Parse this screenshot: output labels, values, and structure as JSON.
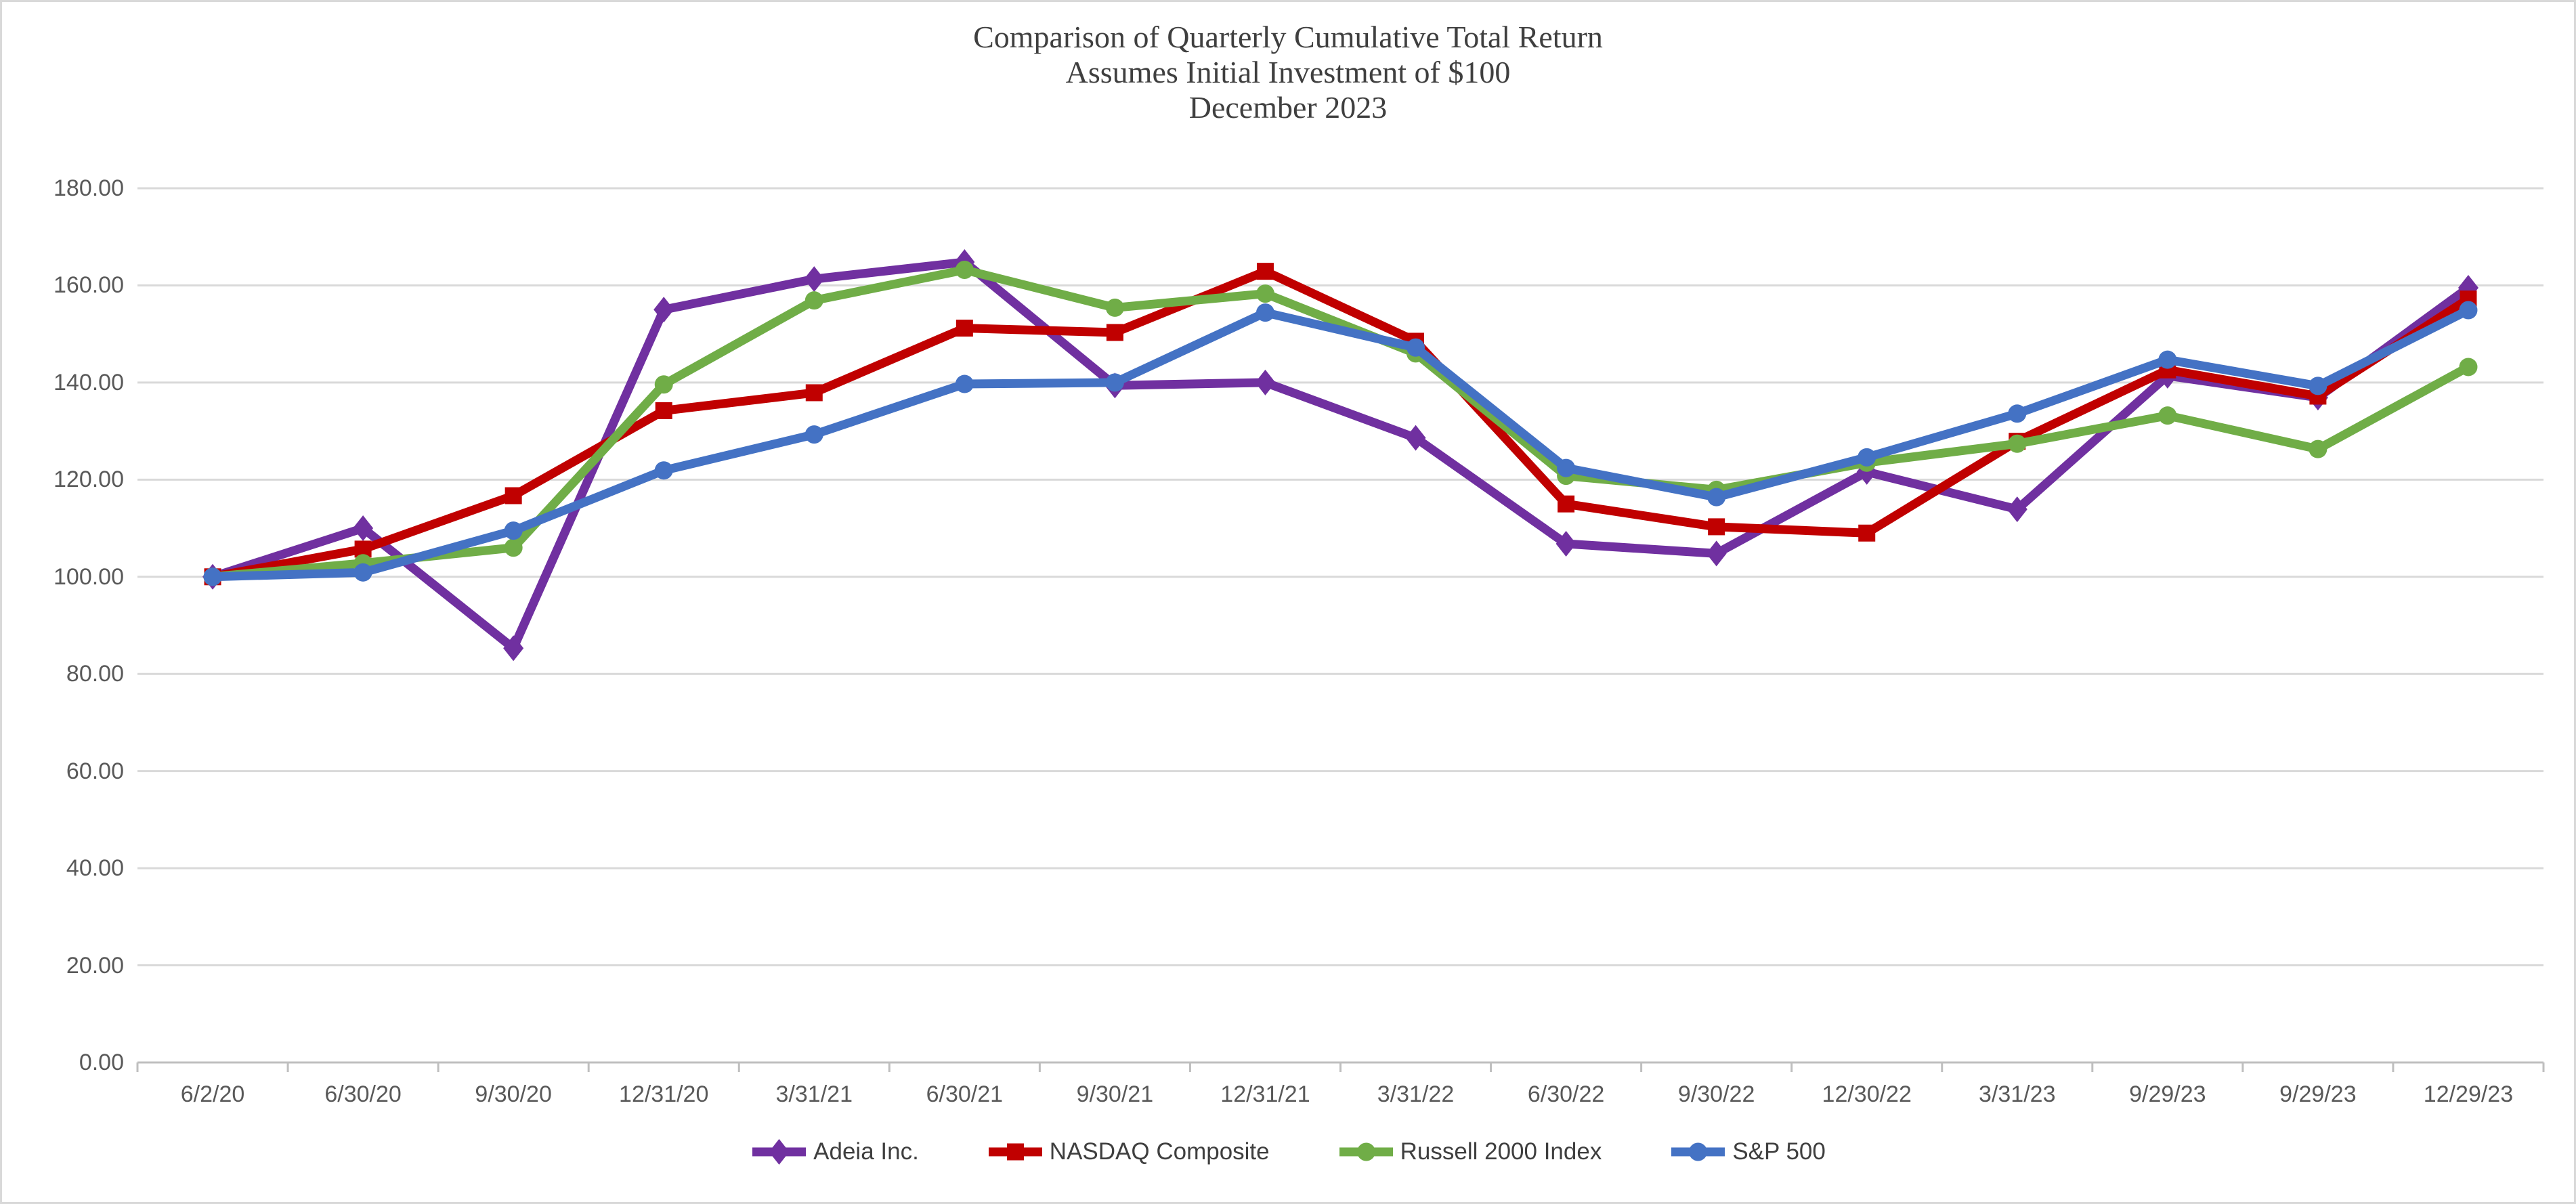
{
  "chart_data": {
    "type": "line",
    "title_lines": [
      "Comparison of Quarterly Cumulative Total Return",
      "Assumes Initial Investment of $100",
      "December 2023"
    ],
    "xlabel": "",
    "ylabel": "",
    "grid": true,
    "legend_position": "bottom",
    "categories": [
      "6/2/20",
      "6/30/20",
      "9/30/20",
      "12/31/20",
      "3/31/21",
      "6/30/21",
      "9/30/21",
      "12/31/21",
      "3/31/22",
      "6/30/22",
      "9/30/22",
      "12/30/22",
      "3/31/23",
      "9/29/23",
      "9/29/23",
      "12/29/23"
    ],
    "y_axis": {
      "min": 0,
      "max": 180,
      "step": 20,
      "tick_labels": [
        "0.00",
        "20.00",
        "40.00",
        "60.00",
        "80.00",
        "100.00",
        "120.00",
        "140.00",
        "160.00",
        "180.00"
      ]
    },
    "colors": {
      "gridline": "#D9D9D9",
      "axis": "#BFBFBF",
      "tick_text": "#595959",
      "title_text": "#3F3F3F"
    },
    "series": [
      {
        "name": "Adeia Inc.",
        "color": "#7030A0",
        "marker": "diamond",
        "values": [
          100.0,
          110.0,
          85.3,
          155.0,
          161.3,
          164.8,
          139.4,
          140.0,
          128.6,
          106.8,
          104.8,
          121.6,
          113.9,
          141.4,
          136.9,
          159.5
        ]
      },
      {
        "name": "NASDAQ Composite",
        "color": "#C00000",
        "marker": "square",
        "values": [
          100.0,
          105.7,
          116.7,
          134.2,
          137.9,
          151.2,
          150.3,
          162.9,
          148.5,
          115.0,
          110.3,
          109.0,
          127.9,
          142.6,
          137.2,
          157.2
        ]
      },
      {
        "name": "Russell 2000 Index",
        "color": "#70AD47",
        "marker": "circle",
        "values": [
          100.0,
          102.8,
          106.0,
          139.6,
          156.9,
          163.2,
          155.4,
          158.3,
          146.0,
          120.8,
          117.9,
          123.5,
          127.4,
          133.2,
          126.3,
          143.2
        ]
      },
      {
        "name": "S&P 500",
        "color": "#4472C4",
        "marker": "circle",
        "values": [
          100.0,
          100.9,
          109.5,
          121.9,
          129.3,
          139.7,
          140.0,
          154.4,
          147.2,
          122.4,
          116.4,
          124.6,
          133.6,
          144.7,
          139.3,
          154.9
        ]
      }
    ]
  }
}
